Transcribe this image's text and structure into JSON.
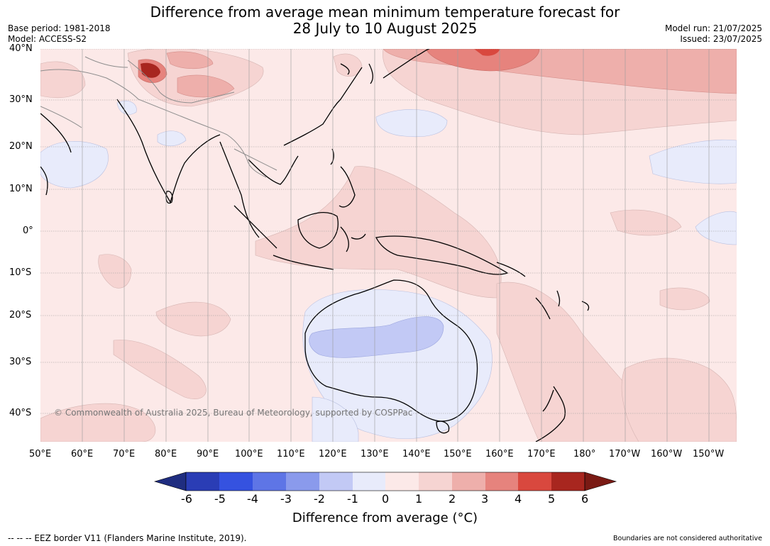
{
  "title": {
    "line1": "Difference from average mean minimum temperature forecast for",
    "line2": "28 July to 10 August 2025"
  },
  "meta": {
    "base_period": "Base period: 1981-2018",
    "model": "Model: ACCESS-S2",
    "model_run": "Model run: 21/07/2025",
    "issued": "Issued: 23/07/2025"
  },
  "copyright": "© Commonwealth of Australia 2025, Bureau of Meteorology, supported by COSPPac",
  "footer": {
    "eez": "--  --  -- EEZ border V11 (Flanders Marine Institute, 2019).",
    "boundaries": "Boundaries are not considered authoritative"
  },
  "map": {
    "lat_labels": [
      "40°N",
      "30°N",
      "20°N",
      "10°N",
      "0°",
      "10°S",
      "20°S",
      "30°S",
      "40°S"
    ],
    "lon_labels": [
      "50°E",
      "60°E",
      "70°E",
      "80°E",
      "90°E",
      "100°E",
      "110°E",
      "120°E",
      "130°E",
      "140°E",
      "150°E",
      "160°E",
      "170°E",
      "180°",
      "170°W",
      "160°W",
      "150°W"
    ]
  },
  "colorbar": {
    "label": "Difference from average (°C)",
    "ticks": [
      "-6",
      "-5",
      "-4",
      "-3",
      "-2",
      "-1",
      "0",
      "1",
      "2",
      "3",
      "4",
      "5",
      "6"
    ],
    "colors": [
      "#1f2d80",
      "#2a3db5",
      "#3552e0",
      "#5e75e6",
      "#8a9aec",
      "#c2c9f5",
      "#e8ebfb",
      "#fce9e8",
      "#f6d4d2",
      "#eeafab",
      "#e6837d",
      "#d9483e",
      "#a8261f",
      "#7a1a14"
    ]
  }
}
